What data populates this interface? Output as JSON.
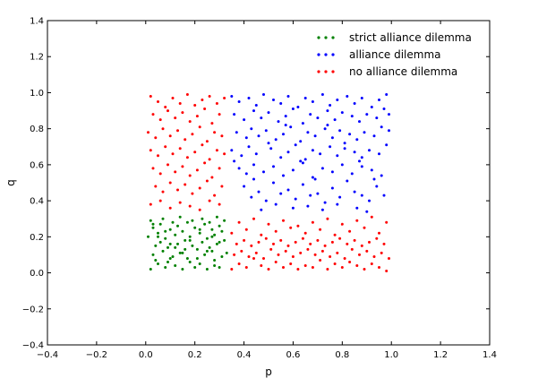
{
  "chart_data": {
    "type": "scatter",
    "title": "",
    "xlabel": "p",
    "ylabel": "q",
    "xlim": [
      -0.4,
      1.4
    ],
    "ylim": [
      -0.4,
      1.4
    ],
    "xticks": [
      "−0.4",
      "−0.2",
      "0.0",
      "0.2",
      "0.4",
      "0.6",
      "0.8",
      "1.0",
      "1.2",
      "1.4"
    ],
    "yticks": [
      "−0.4",
      "−0.2",
      "0.0",
      "0.2",
      "0.4",
      "0.6",
      "0.8",
      "1.0",
      "1.2",
      "1.4"
    ],
    "grid": false,
    "legend_position": "top-right",
    "series": [
      {
        "name": "strict alliance dilemma",
        "color": "#008000",
        "x": [
          0.02,
          0.05,
          0.08,
          0.1,
          0.12,
          0.15,
          0.18,
          0.2,
          0.22,
          0.25,
          0.28,
          0.3,
          0.03,
          0.07,
          0.11,
          0.14,
          0.17,
          0.21,
          0.24,
          0.27,
          0.31,
          0.33,
          0.04,
          0.06,
          0.09,
          0.13,
          0.16,
          0.19,
          0.23,
          0.26,
          0.29,
          0.32,
          0.01,
          0.05,
          0.08,
          0.12,
          0.15,
          0.18,
          0.22,
          0.25,
          0.28,
          0.31,
          0.03,
          0.06,
          0.1,
          0.13,
          0.17,
          0.2,
          0.24,
          0.27,
          0.3,
          0.02,
          0.07,
          0.11,
          0.14,
          0.19,
          0.23,
          0.26,
          0.29,
          0.32,
          0.04,
          0.09,
          0.12,
          0.16,
          0.21,
          0.25,
          0.28,
          0.05,
          0.08,
          0.18,
          0.22,
          0.3,
          0.03,
          0.1,
          0.15,
          0.27
        ],
        "y": [
          0.02,
          0.05,
          0.03,
          0.08,
          0.04,
          0.02,
          0.06,
          0.03,
          0.05,
          0.02,
          0.04,
          0.03,
          0.1,
          0.12,
          0.09,
          0.11,
          0.08,
          0.13,
          0.1,
          0.12,
          0.09,
          0.11,
          0.15,
          0.17,
          0.14,
          0.16,
          0.18,
          0.15,
          0.17,
          0.14,
          0.16,
          0.18,
          0.2,
          0.22,
          0.19,
          0.21,
          0.23,
          0.2,
          0.22,
          0.19,
          0.21,
          0.23,
          0.25,
          0.27,
          0.24,
          0.26,
          0.28,
          0.25,
          0.27,
          0.24,
          0.26,
          0.29,
          0.3,
          0.28,
          0.31,
          0.29,
          0.3,
          0.28,
          0.31,
          0.29,
          0.07,
          0.06,
          0.14,
          0.13,
          0.08,
          0.12,
          0.07,
          0.2,
          0.23,
          0.18,
          0.24,
          0.17,
          0.27,
          0.16,
          0.11,
          0.2
        ]
      },
      {
        "name": "alliance dilemma",
        "color": "#0000ff",
        "x": [
          0.35,
          0.38,
          0.42,
          0.45,
          0.48,
          0.52,
          0.55,
          0.58,
          0.62,
          0.65,
          0.68,
          0.72,
          0.75,
          0.78,
          0.82,
          0.85,
          0.88,
          0.92,
          0.95,
          0.98,
          0.36,
          0.4,
          0.44,
          0.47,
          0.5,
          0.54,
          0.57,
          0.6,
          0.64,
          0.67,
          0.7,
          0.74,
          0.77,
          0.8,
          0.84,
          0.87,
          0.9,
          0.94,
          0.97,
          0.37,
          0.41,
          0.43,
          0.46,
          0.49,
          0.53,
          0.56,
          0.59,
          0.63,
          0.66,
          0.69,
          0.73,
          0.76,
          0.79,
          0.83,
          0.86,
          0.89,
          0.93,
          0.96,
          0.99,
          0.35,
          0.39,
          0.42,
          0.45,
          0.51,
          0.55,
          0.58,
          0.61,
          0.65,
          0.68,
          0.71,
          0.75,
          0.78,
          0.81,
          0.85,
          0.88,
          0.91,
          0.95,
          0.98,
          0.38,
          0.41,
          0.44,
          0.48,
          0.52,
          0.56,
          0.6,
          0.64,
          0.68,
          0.72,
          0.76,
          0.8,
          0.84,
          0.88,
          0.92,
          0.96,
          0.4,
          0.46,
          0.52,
          0.58,
          0.64,
          0.7,
          0.76,
          0.82,
          0.88,
          0.94,
          0.43,
          0.49,
          0.55,
          0.61,
          0.67,
          0.73,
          0.79,
          0.85,
          0.91,
          0.97,
          0.36,
          0.44,
          0.5,
          0.57,
          0.63,
          0.69,
          0.74,
          0.81,
          0.87,
          0.93,
          0.99,
          0.47,
          0.53,
          0.6,
          0.66,
          0.72,
          0.78,
          0.86,
          0.9
        ],
        "y": [
          0.98,
          0.95,
          0.97,
          0.93,
          0.99,
          0.96,
          0.94,
          0.98,
          0.92,
          0.97,
          0.95,
          0.99,
          0.93,
          0.96,
          0.98,
          0.94,
          0.97,
          0.92,
          0.96,
          0.99,
          0.88,
          0.85,
          0.9,
          0.86,
          0.89,
          0.84,
          0.87,
          0.91,
          0.83,
          0.88,
          0.86,
          0.9,
          0.85,
          0.89,
          0.87,
          0.84,
          0.88,
          0.86,
          0.91,
          0.78,
          0.75,
          0.8,
          0.76,
          0.79,
          0.74,
          0.77,
          0.81,
          0.73,
          0.78,
          0.76,
          0.8,
          0.75,
          0.79,
          0.77,
          0.74,
          0.78,
          0.76,
          0.81,
          0.79,
          0.68,
          0.65,
          0.7,
          0.66,
          0.69,
          0.64,
          0.67,
          0.71,
          0.63,
          0.68,
          0.66,
          0.7,
          0.65,
          0.69,
          0.67,
          0.64,
          0.68,
          0.66,
          0.71,
          0.58,
          0.55,
          0.6,
          0.56,
          0.59,
          0.54,
          0.57,
          0.61,
          0.53,
          0.58,
          0.56,
          0.6,
          0.55,
          0.59,
          0.57,
          0.54,
          0.48,
          0.45,
          0.5,
          0.46,
          0.49,
          0.44,
          0.47,
          0.51,
          0.43,
          0.48,
          0.42,
          0.4,
          0.44,
          0.41,
          0.43,
          0.39,
          0.42,
          0.45,
          0.4,
          0.43,
          0.62,
          0.52,
          0.72,
          0.82,
          0.62,
          0.52,
          0.82,
          0.72,
          0.62,
          0.52,
          0.88,
          0.35,
          0.38,
          0.36,
          0.37,
          0.35,
          0.38,
          0.36,
          0.34
        ]
      },
      {
        "name": "no alliance dilemma",
        "color": "#ff0000",
        "x": [
          0.02,
          0.05,
          0.08,
          0.11,
          0.14,
          0.17,
          0.2,
          0.23,
          0.26,
          0.29,
          0.32,
          0.03,
          0.06,
          0.09,
          0.12,
          0.15,
          0.18,
          0.21,
          0.24,
          0.27,
          0.3,
          0.01,
          0.04,
          0.07,
          0.1,
          0.13,
          0.16,
          0.19,
          0.22,
          0.25,
          0.28,
          0.31,
          0.02,
          0.05,
          0.08,
          0.11,
          0.14,
          0.17,
          0.2,
          0.23,
          0.26,
          0.29,
          0.32,
          0.03,
          0.06,
          0.09,
          0.12,
          0.15,
          0.18,
          0.21,
          0.24,
          0.27,
          0.3,
          0.04,
          0.07,
          0.1,
          0.13,
          0.16,
          0.19,
          0.22,
          0.25,
          0.28,
          0.31,
          0.02,
          0.06,
          0.1,
          0.14,
          0.18,
          0.22,
          0.26,
          0.3,
          0.35,
          0.38,
          0.41,
          0.44,
          0.47,
          0.5,
          0.53,
          0.56,
          0.59,
          0.62,
          0.65,
          0.68,
          0.71,
          0.74,
          0.77,
          0.8,
          0.83,
          0.86,
          0.89,
          0.92,
          0.95,
          0.98,
          0.36,
          0.39,
          0.42,
          0.45,
          0.48,
          0.51,
          0.54,
          0.57,
          0.6,
          0.63,
          0.66,
          0.69,
          0.72,
          0.75,
          0.78,
          0.81,
          0.84,
          0.87,
          0.9,
          0.93,
          0.96,
          0.99,
          0.37,
          0.4,
          0.43,
          0.46,
          0.49,
          0.52,
          0.55,
          0.58,
          0.61,
          0.64,
          0.67,
          0.7,
          0.73,
          0.76,
          0.79,
          0.82,
          0.85,
          0.88,
          0.91,
          0.94,
          0.97,
          0.35,
          0.41,
          0.47,
          0.53,
          0.59,
          0.65,
          0.71,
          0.77,
          0.83,
          0.89,
          0.95,
          0.38,
          0.44,
          0.5,
          0.56,
          0.62,
          0.68,
          0.74,
          0.8,
          0.86,
          0.92,
          0.98
        ],
        "y": [
          0.98,
          0.95,
          0.92,
          0.97,
          0.94,
          0.99,
          0.93,
          0.96,
          0.98,
          0.94,
          0.97,
          0.88,
          0.85,
          0.9,
          0.86,
          0.89,
          0.84,
          0.87,
          0.91,
          0.83,
          0.88,
          0.78,
          0.75,
          0.8,
          0.76,
          0.79,
          0.74,
          0.77,
          0.81,
          0.73,
          0.78,
          0.76,
          0.68,
          0.65,
          0.7,
          0.66,
          0.69,
          0.64,
          0.67,
          0.71,
          0.63,
          0.68,
          0.66,
          0.58,
          0.55,
          0.6,
          0.56,
          0.59,
          0.54,
          0.57,
          0.61,
          0.53,
          0.58,
          0.48,
          0.45,
          0.5,
          0.46,
          0.49,
          0.44,
          0.47,
          0.51,
          0.43,
          0.48,
          0.38,
          0.4,
          0.36,
          0.39,
          0.37,
          0.35,
          0.4,
          0.38,
          0.02,
          0.05,
          0.03,
          0.08,
          0.04,
          0.02,
          0.06,
          0.03,
          0.05,
          0.02,
          0.04,
          0.03,
          0.07,
          0.02,
          0.05,
          0.03,
          0.06,
          0.04,
          0.02,
          0.05,
          0.03,
          0.01,
          0.1,
          0.12,
          0.09,
          0.11,
          0.08,
          0.13,
          0.1,
          0.12,
          0.09,
          0.11,
          0.13,
          0.1,
          0.12,
          0.09,
          0.11,
          0.08,
          0.13,
          0.1,
          0.12,
          0.09,
          0.11,
          0.08,
          0.16,
          0.18,
          0.15,
          0.17,
          0.19,
          0.16,
          0.18,
          0.15,
          0.17,
          0.19,
          0.16,
          0.18,
          0.15,
          0.17,
          0.19,
          0.16,
          0.18,
          0.15,
          0.17,
          0.19,
          0.16,
          0.22,
          0.24,
          0.21,
          0.23,
          0.25,
          0.22,
          0.24,
          0.21,
          0.23,
          0.25,
          0.22,
          0.28,
          0.3,
          0.27,
          0.29,
          0.26,
          0.28,
          0.3,
          0.27,
          0.29,
          0.31,
          0.28
        ]
      }
    ]
  }
}
